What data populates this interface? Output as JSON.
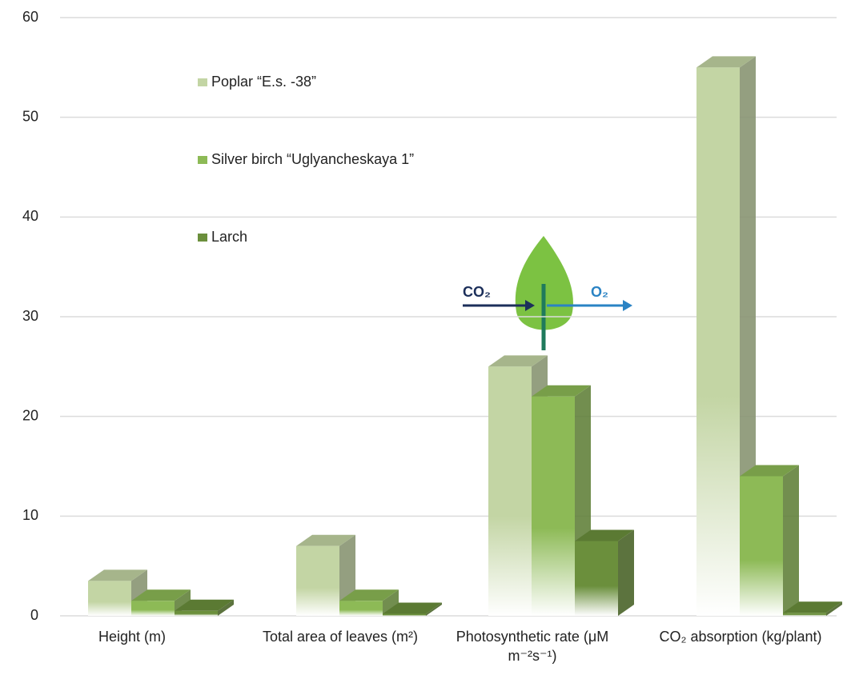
{
  "chart_data": {
    "type": "bar3d",
    "categories": [
      "Height (m)",
      "Total area of leaves (m²)",
      "Photosynthetic rate (μM m⁻²s⁻¹)",
      "CO₂ absorption (kg/plant)"
    ],
    "series": [
      {
        "name": "Poplar “E.s. -38”",
        "color": "#c3d5a4",
        "values": [
          3.5,
          7,
          25,
          55
        ]
      },
      {
        "name": "Silver birch “Uglyancheskaya 1”",
        "color": "#8dba56",
        "values": [
          1.5,
          1.5,
          22,
          14
        ]
      },
      {
        "name": "Larch",
        "color": "#6b8f3c",
        "values": [
          0.5,
          0.2,
          7.5,
          0.3
        ]
      }
    ],
    "ylim": [
      0,
      60
    ],
    "yticks": [
      0,
      10,
      20,
      30,
      40,
      50,
      60
    ],
    "grid": true,
    "annotations": {
      "co2": "CO₂",
      "o2": "O₂"
    }
  }
}
